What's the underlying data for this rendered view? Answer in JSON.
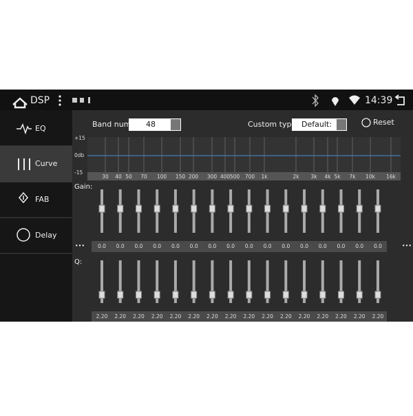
{
  "status_bar": {
    "title": "DSP",
    "time": "14:39"
  },
  "sidebar": {
    "items": [
      "EQ",
      "Curve",
      "FAB",
      "Delay"
    ]
  },
  "controls": {
    "band_label": "Band num:",
    "band_value": "48",
    "type_label": "Custom type:",
    "type_value": "Default:",
    "reset": "Reset"
  },
  "graph": {
    "y_labels": [
      "+15",
      "0db",
      "-15"
    ],
    "freq_labels": [
      "30",
      "40",
      "50",
      "70",
      "100",
      "150",
      "200",
      "300",
      "400",
      "500",
      "700",
      "1k",
      "2k",
      "3k",
      "4k",
      "5k",
      "7k",
      "10k",
      "16k"
    ]
  },
  "gain": {
    "label": "Gain:",
    "more": "•••",
    "values": [
      "0.0",
      "0.0",
      "0.0",
      "0.0",
      "0.0",
      "0.0",
      "0.0",
      "0.0",
      "0.0",
      "0.0",
      "0.0",
      "0.0",
      "0.0",
      "0.0",
      "0.0",
      "0.0"
    ]
  },
  "q": {
    "label": "Q:",
    "values": [
      "2.20",
      "2.20",
      "2.20",
      "2.20",
      "2.20",
      "2.20",
      "2.20",
      "2.20",
      "2.20",
      "2.20",
      "2.20",
      "2.20",
      "2.20",
      "2.20",
      "2.20",
      "2.20"
    ]
  }
}
